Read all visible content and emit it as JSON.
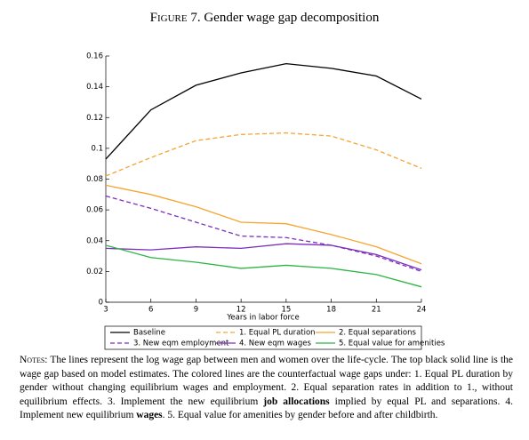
{
  "chart_data": {
    "type": "line",
    "title_label": "Figure 7.",
    "title": "Gender wage gap decomposition",
    "x_label": "Years in labor force",
    "x": [
      3,
      6,
      9,
      12,
      15,
      18,
      21,
      24
    ],
    "xlim": [
      3,
      24
    ],
    "xticks": [
      3,
      6,
      9,
      12,
      15,
      18,
      21,
      24
    ],
    "ylim": [
      0,
      0.16
    ],
    "yticks": [
      0,
      0.02,
      0.04,
      0.06,
      0.08,
      0.1,
      0.12,
      0.14,
      0.16
    ],
    "grid": false,
    "series": [
      {
        "name": "Baseline",
        "color": "#000000",
        "line_style": "solid",
        "values": [
          0.093,
          0.125,
          0.141,
          0.149,
          0.155,
          0.152,
          0.147,
          0.132
        ]
      },
      {
        "name": "1. Equal PL duration",
        "color": "#f5a432",
        "line_style": "dashed",
        "values": [
          0.082,
          0.094,
          0.105,
          0.109,
          0.11,
          0.108,
          0.099,
          0.087
        ]
      },
      {
        "name": "2. Equal separations",
        "color": "#f5a432",
        "line_style": "solid",
        "values": [
          0.076,
          0.07,
          0.062,
          0.052,
          0.051,
          0.044,
          0.036,
          0.025
        ]
      },
      {
        "name": "3. New eqm employment",
        "color": "#7b2fbe",
        "line_style": "dashed",
        "values": [
          0.069,
          0.061,
          0.052,
          0.043,
          0.042,
          0.037,
          0.03,
          0.02
        ]
      },
      {
        "name": "4. New eqm wages",
        "color": "#7b2fbe",
        "line_style": "solid",
        "values": [
          0.035,
          0.034,
          0.036,
          0.035,
          0.038,
          0.037,
          0.031,
          0.021
        ]
      },
      {
        "name": "5. Equal value for amenities",
        "color": "#2bb543",
        "line_style": "solid",
        "values": [
          0.037,
          0.029,
          0.026,
          0.022,
          0.024,
          0.022,
          0.018,
          0.01
        ]
      }
    ],
    "notes_label": "Notes:",
    "notes": [
      "The lines represent the log wage gap between men and women over the life-cycle. The top black solid line is the wage gap based on model estimates. The colored lines are the counterfactual wage gaps under: 1. Equal PL duration by gender without changing equilibrium wages and employment. 2. Equal separation rates in addition to 1., without equilibrium effects. 3. Implement the new equilibrium",
      "job allocations",
      "implied by equal PL and separations. 4. Implement new equilibrium",
      "wages",
      ". 5. Equal value for amenities by gender before and after childbirth."
    ]
  }
}
